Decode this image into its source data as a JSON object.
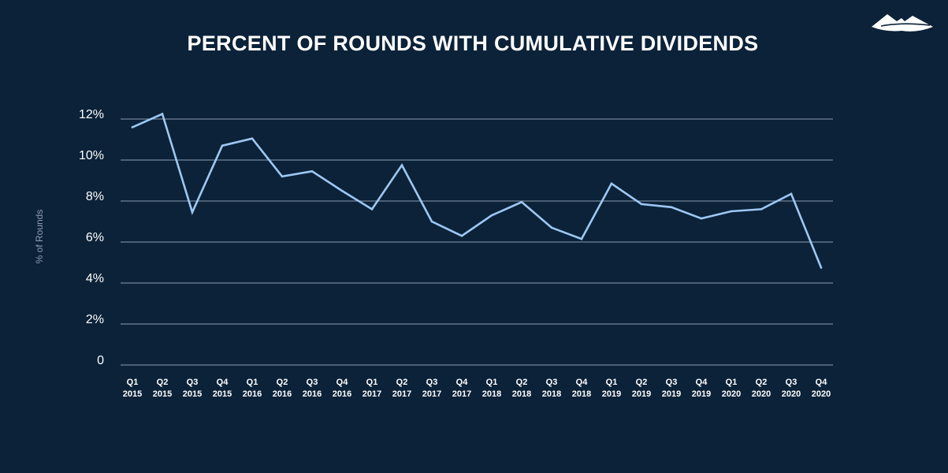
{
  "brand": {
    "logo_icon": "mountain-logo-icon",
    "logo_color": "#ffffff"
  },
  "colors": {
    "background": "#0b2239",
    "line": "#9ec7f2",
    "grid": "#8b9bb0",
    "text": "#ffffff"
  },
  "chart_data": {
    "type": "line",
    "title": "PERCENT OF ROUNDS WITH CUMULATIVE DIVIDENDS",
    "ylabel": "% of Rounds",
    "xlabel": "",
    "ylim": [
      0,
      12
    ],
    "yticks": [
      {
        "value": 0,
        "label": "0"
      },
      {
        "value": 2,
        "label": "2%"
      },
      {
        "value": 4,
        "label": "4%"
      },
      {
        "value": 6,
        "label": "6%"
      },
      {
        "value": 8,
        "label": "8%"
      },
      {
        "value": 10,
        "label": "10%"
      },
      {
        "value": 12,
        "label": "12%"
      }
    ],
    "grid": true,
    "legend": "none",
    "categories": [
      {
        "q": "Q1",
        "year": "2015"
      },
      {
        "q": "Q2",
        "year": "2015"
      },
      {
        "q": "Q3",
        "year": "2015"
      },
      {
        "q": "Q4",
        "year": "2015"
      },
      {
        "q": "Q1",
        "year": "2016"
      },
      {
        "q": "Q2",
        "year": "2016"
      },
      {
        "q": "Q3",
        "year": "2016"
      },
      {
        "q": "Q4",
        "year": "2016"
      },
      {
        "q": "Q1",
        "year": "2017"
      },
      {
        "q": "Q2",
        "year": "2017"
      },
      {
        "q": "Q3",
        "year": "2017"
      },
      {
        "q": "Q4",
        "year": "2017"
      },
      {
        "q": "Q1",
        "year": "2018"
      },
      {
        "q": "Q2",
        "year": "2018"
      },
      {
        "q": "Q3",
        "year": "2018"
      },
      {
        "q": "Q4",
        "year": "2018"
      },
      {
        "q": "Q1",
        "year": "2019"
      },
      {
        "q": "Q2",
        "year": "2019"
      },
      {
        "q": "Q3",
        "year": "2019"
      },
      {
        "q": "Q4",
        "year": "2019"
      },
      {
        "q": "Q1",
        "year": "2020"
      },
      {
        "q": "Q2",
        "year": "2020"
      },
      {
        "q": "Q3",
        "year": "2020"
      },
      {
        "q": "Q4",
        "year": "2020"
      }
    ],
    "series": [
      {
        "values": [
          11.6,
          12.25,
          7.45,
          10.7,
          11.05,
          9.2,
          9.45,
          8.5,
          7.6,
          9.75,
          7.0,
          6.3,
          7.3,
          7.95,
          6.7,
          6.15,
          8.85,
          7.85,
          7.7,
          7.15,
          7.5,
          7.6,
          8.35,
          4.75
        ]
      }
    ]
  }
}
